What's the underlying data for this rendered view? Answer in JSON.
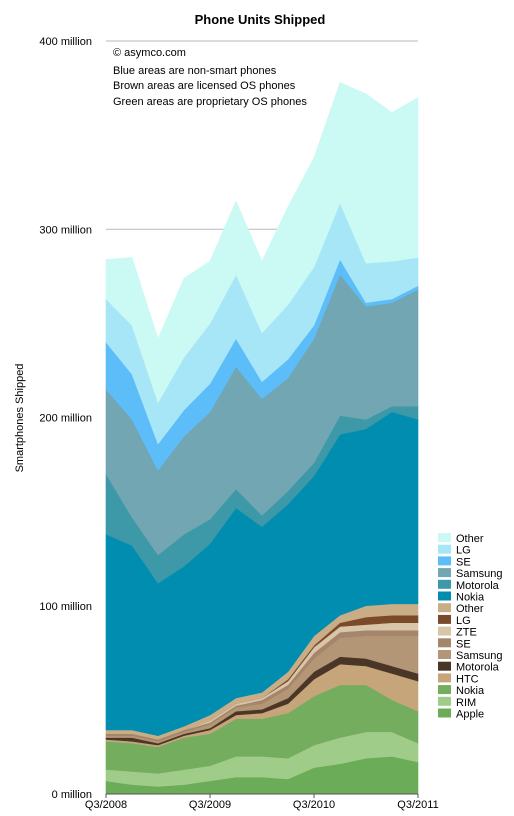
{
  "chart_data": {
    "type": "area",
    "title": "Phone Units Shipped",
    "ylabel": "Smartphones Shipped",
    "xlabel": "",
    "ylim": [
      0,
      400
    ],
    "y_ticks": [
      "0 million",
      "100 million",
      "200 million",
      "300 million",
      "400 million"
    ],
    "y_tick_values": [
      0,
      100,
      200,
      300,
      400
    ],
    "x_tick_labels": [
      "Q3/2008",
      "Q3/2009",
      "Q3/2010",
      "Q3/2011"
    ],
    "x_tick_indices": [
      0,
      4,
      8,
      12
    ],
    "stacked": true,
    "grid": "horizontal",
    "legend_position": "right",
    "annotations": [
      "© asymco.com",
      "Blue areas are non-smart phones",
      "Brown areas are licensed OS phones",
      "Green areas are proprietary OS phones"
    ],
    "x": [
      "Q3/2008",
      "Q4/2008",
      "Q1/2009",
      "Q2/2009",
      "Q3/2009",
      "Q4/2009",
      "Q1/2010",
      "Q2/2010",
      "Q3/2010",
      "Q4/2010",
      "Q1/2011",
      "Q2/2011",
      "Q3/2011"
    ],
    "series": [
      {
        "name": "Apple",
        "color": "#6aac57",
        "values": [
          7,
          5,
          4,
          5,
          7,
          9,
          9,
          8,
          14,
          16,
          19,
          20,
          17
        ]
      },
      {
        "name": "RIM",
        "color": "#9fcc88",
        "values": [
          6,
          7,
          7,
          8,
          8,
          11,
          11,
          11,
          12,
          14,
          14,
          13,
          10
        ]
      },
      {
        "name": "Nokia",
        "color": "#73ad5d",
        "values": [
          15,
          15,
          14,
          17,
          17,
          20,
          20,
          24,
          26,
          28,
          25,
          17,
          17
        ]
      },
      {
        "name": "HTC",
        "color": "#c6a57b",
        "values": [
          1,
          1,
          1,
          1,
          2,
          2,
          3,
          5,
          9,
          11,
          10,
          14,
          16
        ]
      },
      {
        "name": "Motorola",
        "color": "#4a3626",
        "values": [
          1,
          2,
          1,
          1,
          1,
          2,
          2,
          3,
          4,
          4,
          4,
          4,
          4
        ]
      },
      {
        "name": "Samsung",
        "color": "#b39676",
        "values": [
          1,
          1,
          1,
          1,
          2,
          2,
          3,
          5,
          7,
          10,
          12,
          16,
          20
        ]
      },
      {
        "name": "SE",
        "color": "#a5856b",
        "values": [
          1,
          1,
          1,
          1,
          1,
          1,
          2,
          2,
          3,
          3,
          3,
          3,
          3
        ]
      },
      {
        "name": "ZTE",
        "color": "#d9c6a8",
        "values": [
          0,
          0,
          0,
          0,
          1,
          1,
          1,
          2,
          3,
          3,
          3,
          4,
          4
        ]
      },
      {
        "name": "LG",
        "color": "#7b4a2b",
        "values": [
          0,
          0,
          0,
          0,
          0,
          0,
          0,
          1,
          1,
          2,
          4,
          4,
          4
        ]
      },
      {
        "name": "Other",
        "color": "#c8ad86",
        "values": [
          2,
          2,
          2,
          2,
          3,
          3,
          3,
          4,
          5,
          4,
          6,
          6,
          6
        ]
      },
      {
        "name": "Nokia",
        "color": "#008db0",
        "values": [
          104,
          98,
          81,
          85,
          91,
          101,
          88,
          89,
          85,
          96,
          94,
          102,
          98
        ]
      },
      {
        "name": "Motorola",
        "color": "#3d98a8",
        "values": [
          32,
          15,
          15,
          17,
          13,
          10,
          6,
          7,
          7,
          10,
          5,
          3,
          7
        ]
      },
      {
        "name": "Samsung",
        "color": "#71a6b2",
        "values": [
          45,
          52,
          45,
          52,
          57,
          65,
          62,
          60,
          66,
          75,
          60,
          55,
          62
        ]
      },
      {
        "name": "SE",
        "color": "#5dbdf9",
        "values": [
          25,
          24,
          14,
          14,
          15,
          15,
          9,
          10,
          7,
          8,
          2,
          2,
          2
        ]
      },
      {
        "name": "LG",
        "color": "#a7e6f7",
        "values": [
          23,
          26,
          22,
          28,
          32,
          34,
          26,
          29,
          31,
          30,
          21,
          20,
          15
        ]
      },
      {
        "name": "Other",
        "color": "#cbfaf5",
        "values": [
          21,
          36,
          34,
          42,
          33,
          39,
          38,
          52,
          58,
          64,
          90,
          79,
          85
        ]
      }
    ],
    "legend_order": [
      "Other",
      "LG",
      "SE",
      "Samsung",
      "Motorola",
      "Nokia",
      "Other",
      "LG",
      "ZTE",
      "SE",
      "Samsung",
      "Motorola",
      "HTC",
      "Nokia",
      "RIM",
      "Apple"
    ]
  }
}
